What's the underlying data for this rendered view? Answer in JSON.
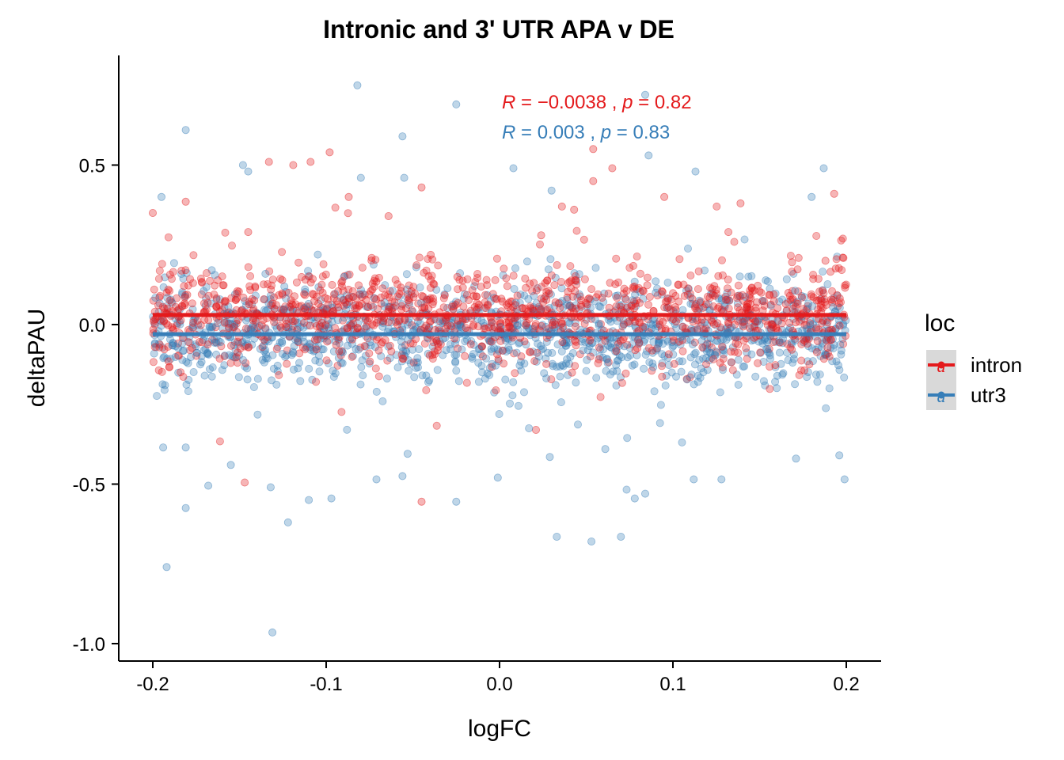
{
  "chart_data": {
    "type": "scatter",
    "title": "Intronic and 3' UTR APA v DE",
    "xlabel": "logFC",
    "ylabel": "deltaPAU",
    "xlim": [
      -0.22,
      0.22
    ],
    "ylim": [
      -1.05,
      0.84
    ],
    "x_ticks": [
      -0.2,
      -0.1,
      0.0,
      0.1,
      0.2
    ],
    "x_tick_labels": [
      "-0.2",
      "-0.1",
      "0.0",
      "0.1",
      "0.2"
    ],
    "y_ticks": [
      0.5,
      0.0,
      -0.5,
      -1.0
    ],
    "y_tick_labels": [
      "0.5",
      "0.0",
      "-0.5",
      "-1.0"
    ],
    "grid": false,
    "legend": {
      "title": "loc",
      "placement": "right",
      "glyph": "a",
      "entries": [
        "intron",
        "utr3"
      ]
    },
    "series": [
      {
        "name": "intron",
        "color": "#E41A1C",
        "stat_label": "R = −0.0038 , p = 0.82",
        "stat_parts": [
          "R",
          " = −0.0038 , ",
          "p",
          " = 0.82"
        ],
        "fit": {
          "x": [
            -0.2,
            0.2
          ],
          "y": [
            0.03,
            0.03
          ]
        },
        "points": [
          [
            -0.2,
            0.35
          ],
          [
            -0.181,
            0.385
          ],
          [
            -0.147,
            -0.495
          ],
          [
            -0.145,
            0.29
          ],
          [
            -0.133,
            0.51
          ],
          [
            -0.119,
            0.5
          ],
          [
            -0.109,
            0.51
          ],
          [
            -0.098,
            0.54
          ],
          [
            -0.087,
            0.4
          ],
          [
            -0.064,
            0.34
          ],
          [
            -0.045,
            0.43
          ],
          [
            -0.045,
            -0.555
          ],
          [
            0.024,
            0.28
          ],
          [
            0.036,
            0.37
          ],
          [
            0.043,
            0.36
          ],
          [
            0.054,
            0.45
          ],
          [
            0.054,
            0.55
          ],
          [
            0.065,
            0.49
          ],
          [
            0.095,
            0.4
          ],
          [
            0.139,
            0.38
          ],
          [
            0.188,
            0.2
          ],
          [
            0.193,
            0.41
          ],
          [
            0.198,
            0.21
          ],
          [
            0.021,
            -0.33
          ],
          [
            0.132,
            0.29
          ]
        ]
      },
      {
        "name": "utr3",
        "color": "#377EB8",
        "stat_label": "R = 0.003 , p = 0.83",
        "stat_parts": [
          "R",
          " = 0.003 , ",
          "p",
          " = 0.83"
        ],
        "fit": {
          "x": [
            -0.2,
            0.2
          ],
          "y": [
            -0.03,
            -0.03
          ]
        },
        "points": [
          [
            -0.181,
            0.61
          ],
          [
            -0.082,
            0.75
          ],
          [
            -0.025,
            0.69
          ],
          [
            0.084,
            0.72
          ],
          [
            -0.056,
            0.59
          ],
          [
            -0.148,
            0.5
          ],
          [
            -0.145,
            0.48
          ],
          [
            0.008,
            0.49
          ],
          [
            0.086,
            0.53
          ],
          [
            0.113,
            0.48
          ],
          [
            0.187,
            0.49
          ],
          [
            -0.192,
            -0.76
          ],
          [
            -0.131,
            -0.965
          ],
          [
            -0.122,
            -0.62
          ],
          [
            -0.181,
            -0.575
          ],
          [
            0.033,
            -0.665
          ],
          [
            0.053,
            -0.68
          ],
          [
            0.07,
            -0.665
          ],
          [
            0.078,
            -0.545
          ],
          [
            0.084,
            -0.53
          ],
          [
            -0.001,
            -0.48
          ],
          [
            0.112,
            -0.485
          ],
          [
            0.128,
            -0.485
          ],
          [
            0.199,
            -0.485
          ],
          [
            -0.168,
            -0.505
          ],
          [
            -0.11,
            -0.55
          ],
          [
            -0.097,
            -0.545
          ],
          [
            -0.025,
            -0.555
          ],
          [
            -0.056,
            -0.475
          ],
          [
            -0.071,
            -0.485
          ],
          [
            -0.195,
            0.4
          ],
          [
            -0.08,
            0.46
          ],
          [
            -0.055,
            0.46
          ],
          [
            0.03,
            0.42
          ],
          [
            0.18,
            0.4
          ],
          [
            -0.194,
            -0.385
          ],
          [
            -0.181,
            -0.385
          ],
          [
            -0.053,
            -0.405
          ],
          [
            0.029,
            -0.415
          ],
          [
            0.171,
            -0.42
          ],
          [
            0.196,
            -0.41
          ],
          [
            0.061,
            -0.39
          ],
          [
            -0.155,
            -0.44
          ],
          [
            -0.132,
            -0.51
          ],
          [
            0.017,
            -0.325
          ]
        ]
      }
    ]
  }
}
